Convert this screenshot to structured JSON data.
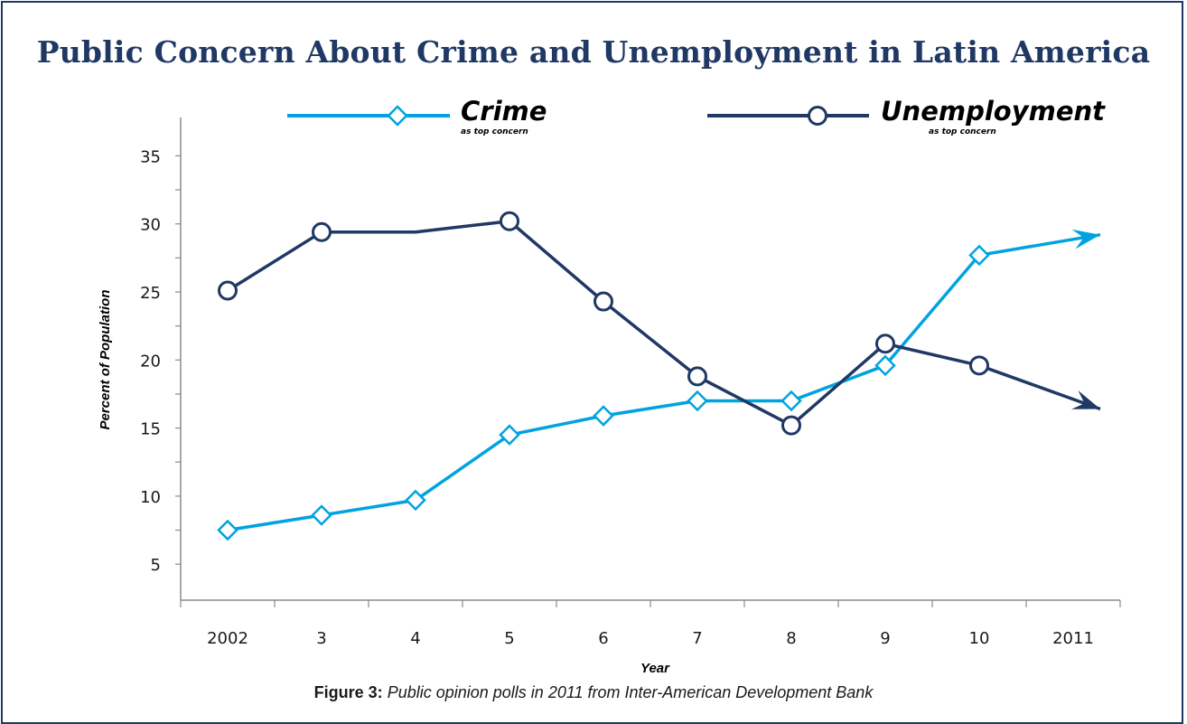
{
  "title": "Public Concern About Crime and Unemployment in Latin America",
  "caption": {
    "label": "Figure 3:",
    "text": "Public opinion polls in 2011 from Inter-American Development Bank"
  },
  "colors": {
    "crime": "#00a3e0",
    "unemployment": "#1f3864",
    "axis": "#8c8c8c"
  },
  "chart_data": {
    "type": "line",
    "xlabel": "Year",
    "ylabel": "Percent of Population",
    "categories": [
      "2002",
      "3",
      "4",
      "5",
      "6",
      "7",
      "8",
      "9",
      "10",
      "2011"
    ],
    "yticks": [
      "5",
      "10",
      "15",
      "20",
      "25",
      "30",
      "35"
    ],
    "ylim": [
      4,
      36
    ],
    "grid": false,
    "legend_position": "top",
    "series": [
      {
        "name": "Crime",
        "subtitle": "as top concern",
        "marker": "diamond",
        "values": [
          7.5,
          8.6,
          9.7,
          14.5,
          15.9,
          17.0,
          17.0,
          19.6,
          27.7,
          null
        ],
        "trend_arrow_end": 29.2
      },
      {
        "name": "Unemployment",
        "subtitle": "as top concern",
        "marker": "circle",
        "values": [
          25.1,
          29.4,
          null,
          30.2,
          24.3,
          18.8,
          15.2,
          21.2,
          19.6,
          null
        ],
        "unmarked_points": [
          [
            2,
            29.4
          ]
        ],
        "trend_arrow_end": 16.4
      }
    ]
  }
}
